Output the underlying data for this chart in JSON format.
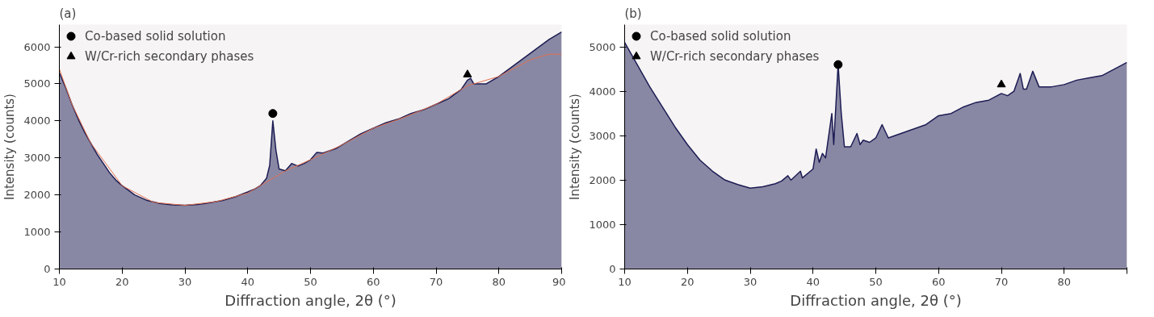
{
  "chart_data": [
    {
      "type": "area",
      "title": "(a)",
      "xlabel": "Diffraction angle, 2θ (°)",
      "ylabel": "Intensity (counts)",
      "xlim": [
        10,
        90
      ],
      "ylim": [
        0,
        6600
      ],
      "xticks": [
        10,
        20,
        30,
        40,
        50,
        60,
        70,
        80,
        90
      ],
      "yticks": [
        0,
        1000,
        2000,
        3000,
        4000,
        5000,
        6000
      ],
      "grid": false,
      "legend": "top left",
      "series": [
        {
          "color": "#1c1c54",
          "x": [
            10,
            11,
            12,
            13,
            14,
            15,
            16,
            17,
            18,
            19,
            20,
            22,
            24,
            26,
            28,
            30,
            32,
            34,
            36,
            38,
            40,
            41,
            42,
            42.5,
            43,
            43.5,
            44,
            44.5,
            45,
            46,
            47,
            48,
            49,
            50,
            51,
            52,
            54,
            56,
            58,
            60,
            62,
            64,
            66,
            68,
            70,
            72,
            74,
            75,
            75.5,
            76,
            78,
            80,
            82,
            84,
            86,
            88,
            90
          ],
          "values": [
            5300,
            4900,
            4450,
            4050,
            3700,
            3400,
            3100,
            2850,
            2600,
            2400,
            2250,
            2000,
            1850,
            1770,
            1730,
            1720,
            1740,
            1790,
            1850,
            1950,
            2080,
            2150,
            2250,
            2350,
            2450,
            2800,
            4000,
            3200,
            2700,
            2650,
            2850,
            2780,
            2850,
            2950,
            3150,
            3130,
            3250,
            3450,
            3650,
            3800,
            3950,
            4050,
            4200,
            4300,
            4450,
            4600,
            4850,
            5100,
            5150,
            5000,
            5000,
            5200,
            5450,
            5700,
            5950,
            6200,
            6400
          ]
        },
        {
          "type": "line",
          "color": "#e07050",
          "x": [
            10,
            12,
            15,
            20,
            25,
            30,
            35,
            40,
            44,
            46,
            50,
            55,
            60,
            65,
            70,
            75,
            80,
            85,
            88,
            90
          ],
          "values": [
            5400,
            4450,
            3400,
            2250,
            1800,
            1720,
            1820,
            2050,
            2450,
            2650,
            2950,
            3350,
            3800,
            4100,
            4450,
            4950,
            5200,
            5650,
            5800,
            5800
          ]
        },
        {
          "type": "scatter",
          "name": "Co-based solid solution",
          "marker": "circle",
          "color": "#000000",
          "x": [
            44
          ],
          "values": [
            4200
          ]
        },
        {
          "type": "scatter",
          "name": "W/Cr-rich secondary phases",
          "marker": "triangle",
          "color": "#000000",
          "x": [
            75
          ],
          "values": [
            5250
          ]
        }
      ]
    },
    {
      "type": "area",
      "title": "(b)",
      "xlabel": "Diffraction angle, 2θ (°)",
      "ylabel": "Intensity (counts)",
      "xlim": [
        10,
        90
      ],
      "ylim": [
        0,
        5500
      ],
      "xticks": [
        10,
        20,
        30,
        40,
        50,
        60,
        70,
        80,
        {
          "value": 90,
          "label": null
        }
      ],
      "yticks": [
        0,
        1000,
        2000,
        3000,
        4000,
        5000
      ],
      "grid": false,
      "legend": "top left",
      "series": [
        {
          "color": "#1c1c54",
          "x": [
            10,
            12,
            14,
            16,
            18,
            20,
            22,
            24,
            26,
            28,
            30,
            32,
            34,
            35,
            36,
            36.5,
            38,
            38.3,
            40,
            40.5,
            41,
            41.5,
            42,
            43,
            43.3,
            44,
            44.5,
            45,
            46,
            47,
            47.5,
            48,
            49,
            50,
            51,
            52,
            54,
            56,
            58,
            60,
            62,
            64,
            66,
            68,
            70,
            71,
            72,
            73,
            73.5,
            74,
            75,
            76,
            78,
            80,
            82,
            84,
            86,
            88,
            90
          ],
          "values": [
            5100,
            4600,
            4100,
            3650,
            3200,
            2800,
            2450,
            2200,
            2000,
            1900,
            1820,
            1850,
            1920,
            1980,
            2100,
            2000,
            2200,
            2050,
            2250,
            2700,
            2400,
            2600,
            2500,
            3500,
            2800,
            4600,
            3500,
            2750,
            2750,
            3050,
            2800,
            2900,
            2850,
            2950,
            3250,
            2950,
            3050,
            3150,
            3250,
            3450,
            3500,
            3650,
            3750,
            3800,
            3950,
            3900,
            4000,
            4400,
            4050,
            4050,
            4450,
            4100,
            4100,
            4150,
            4250,
            4300,
            4350,
            4500,
            4650
          ]
        },
        {
          "type": "scatter",
          "name": "Co-based solid solution",
          "marker": "circle",
          "color": "#000000",
          "x": [
            44
          ],
          "values": [
            4600
          ]
        },
        {
          "type": "scatter",
          "name": "W/Cr-rich secondary phases",
          "marker": "triangle",
          "color": "#000000",
          "x": [
            70
          ],
          "values": [
            4150
          ]
        }
      ]
    }
  ]
}
